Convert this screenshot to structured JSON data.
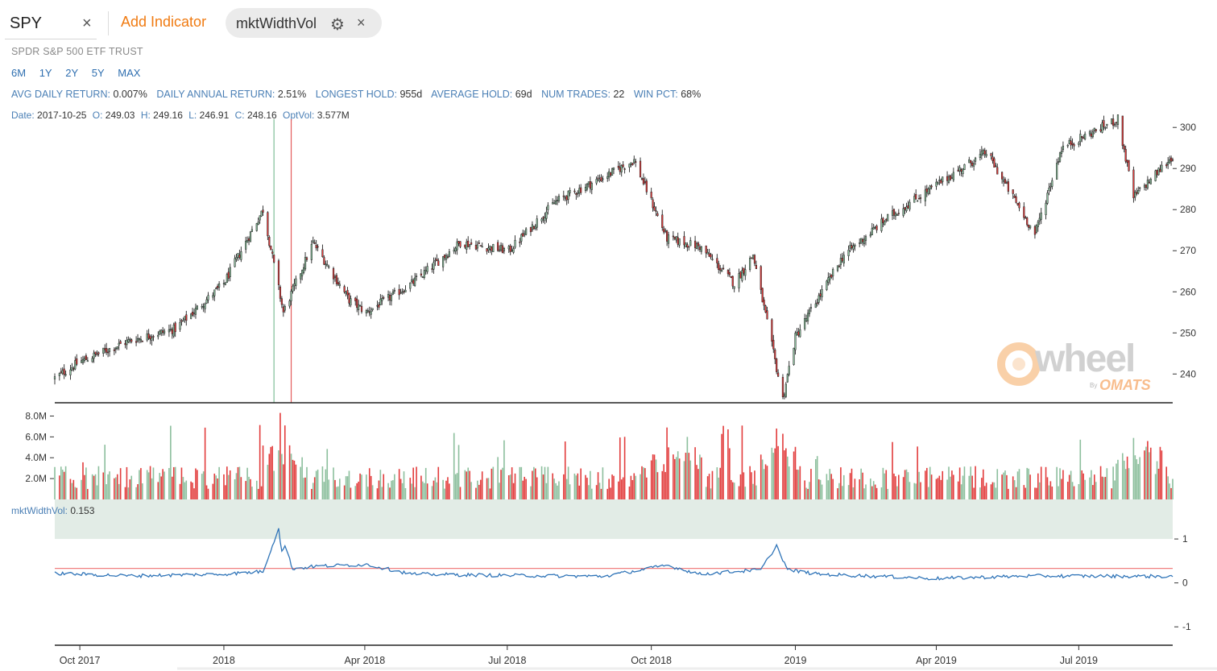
{
  "toolbar": {
    "ticker": "SPY",
    "clear_icon": "×",
    "add_indicator": "Add Indicator",
    "indicator_chip": {
      "label": "mktWidthVol",
      "gear_icon": "⚙",
      "close_icon": "×"
    }
  },
  "company_name": "SPDR S&P 500 ETF TRUST",
  "ranges": [
    "6M",
    "1Y",
    "2Y",
    "5Y",
    "MAX"
  ],
  "stats": [
    {
      "label": "AVG DAILY RETURN:",
      "value": "0.007%"
    },
    {
      "label": "DAILY ANNUAL RETURN:",
      "value": "2.51%"
    },
    {
      "label": "LONGEST HOLD:",
      "value": "955d"
    },
    {
      "label": "AVERAGE HOLD:",
      "value": "69d"
    },
    {
      "label": "NUM TRADES:",
      "value": "22"
    },
    {
      "label": "WIN PCT:",
      "value": "68%"
    }
  ],
  "ohlc": [
    {
      "label": "Date:",
      "value": "2017-10-25"
    },
    {
      "label": "O:",
      "value": "249.03"
    },
    {
      "label": "H:",
      "value": "249.16"
    },
    {
      "label": "L:",
      "value": "246.91"
    },
    {
      "label": "C:",
      "value": "248.16"
    },
    {
      "label": "OptVol:",
      "value": "3.577M"
    }
  ],
  "indicator_readout": {
    "label": "mktWidthVol:",
    "value": "0.153"
  },
  "watermark": {
    "word": "wheel",
    "by": "By",
    "brand": "OMATS"
  },
  "colors": {
    "up": "#8cbf9d",
    "down": "#e23c3c",
    "line": "#2f74b8",
    "threshold": "#f08080",
    "band": "#e2ece6",
    "entry_marker": "#7fbf97",
    "exit_marker": "#e35b5b",
    "accent": "#f07b12"
  },
  "chart_data": [
    {
      "type": "candlestick",
      "title": "SPY",
      "x_range": [
        "2017-09-15",
        "2019-08-30"
      ],
      "ylim": [
        233,
        302
      ],
      "y_ticks": [
        240,
        250,
        260,
        270,
        280,
        290,
        300
      ],
      "x_ticks": [
        "Oct 2017",
        "2018",
        "Apr 2018",
        "Jul 2018",
        "Oct 2018",
        "2019",
        "Apr 2019",
        "Jul 2019"
      ],
      "x_tick_dates": [
        "2017-10-01",
        "2018-01-01",
        "2018-04-01",
        "2018-07-01",
        "2018-10-01",
        "2019-01-01",
        "2019-04-01",
        "2019-07-01"
      ],
      "close_path": [
        [
          "2017-09-15",
          239
        ],
        [
          "2017-10-01",
          243
        ],
        [
          "2017-11-01",
          248
        ],
        [
          "2017-12-01",
          251
        ],
        [
          "2018-01-01",
          262
        ],
        [
          "2018-01-26",
          280
        ],
        [
          "2018-02-08",
          255
        ],
        [
          "2018-02-27",
          272
        ],
        [
          "2018-03-22",
          258
        ],
        [
          "2018-04-02",
          255
        ],
        [
          "2018-05-01",
          262
        ],
        [
          "2018-06-01",
          272
        ],
        [
          "2018-07-02",
          270
        ],
        [
          "2018-08-01",
          282
        ],
        [
          "2018-09-01",
          288
        ],
        [
          "2018-09-20",
          292
        ],
        [
          "2018-10-11",
          273
        ],
        [
          "2018-11-01",
          271
        ],
        [
          "2018-11-23",
          262
        ],
        [
          "2018-12-05",
          269
        ],
        [
          "2018-12-24",
          234
        ],
        [
          "2019-01-01",
          249
        ],
        [
          "2019-02-01",
          269
        ],
        [
          "2019-03-01",
          278
        ],
        [
          "2019-04-01",
          286
        ],
        [
          "2019-05-03",
          294
        ],
        [
          "2019-06-03",
          274
        ],
        [
          "2019-06-20",
          295
        ],
        [
          "2019-07-26",
          302
        ],
        [
          "2019-08-05",
          283
        ],
        [
          "2019-08-30",
          293
        ]
      ],
      "markers": [
        {
          "date": "2018-02-02",
          "type": "entry"
        },
        {
          "date": "2018-02-13",
          "type": "exit"
        }
      ]
    },
    {
      "type": "bar",
      "title": "OptVol",
      "ylim": [
        0,
        8500000
      ],
      "y_ticks": [
        2000000,
        4000000,
        6000000,
        8000000
      ],
      "y_tick_labels": [
        "2.0M",
        "4.0M",
        "6.0M",
        "8.0M"
      ],
      "baseline": 2000000,
      "spikes": [
        [
          "2018-02-06",
          8300000
        ],
        [
          "2018-02-09",
          7100000
        ],
        [
          "2018-10-11",
          6900000
        ],
        [
          "2018-10-24",
          6000000
        ],
        [
          "2018-12-20",
          6800000
        ],
        [
          "2018-12-24",
          6300000
        ],
        [
          "2019-08-05",
          5900000
        ],
        [
          "2019-08-14",
          5600000
        ]
      ]
    },
    {
      "type": "line",
      "title": "mktWidthVol",
      "ylim": [
        -1.4,
        1.9
      ],
      "y_ticks": [
        -1,
        0,
        1
      ],
      "y_tick_labels": [
        "-1",
        "0",
        "1"
      ],
      "band": [
        1,
        1.9
      ],
      "threshold": 0.33,
      "series": [
        [
          "2017-09-15",
          0.22
        ],
        [
          "2017-11-01",
          0.16
        ],
        [
          "2018-01-01",
          0.2
        ],
        [
          "2018-01-26",
          0.26
        ],
        [
          "2018-02-05",
          1.25
        ],
        [
          "2018-02-07",
          0.7
        ],
        [
          "2018-02-09",
          0.85
        ],
        [
          "2018-02-14",
          0.32
        ],
        [
          "2018-03-01",
          0.38
        ],
        [
          "2018-04-02",
          0.42
        ],
        [
          "2018-05-01",
          0.2
        ],
        [
          "2018-07-01",
          0.17
        ],
        [
          "2018-09-01",
          0.15
        ],
        [
          "2018-10-11",
          0.4
        ],
        [
          "2018-11-01",
          0.2
        ],
        [
          "2018-12-10",
          0.3
        ],
        [
          "2018-12-20",
          0.85
        ],
        [
          "2018-12-27",
          0.3
        ],
        [
          "2019-01-15",
          0.2
        ],
        [
          "2019-04-01",
          0.1
        ],
        [
          "2019-06-01",
          0.16
        ],
        [
          "2019-08-30",
          0.15
        ]
      ]
    }
  ]
}
